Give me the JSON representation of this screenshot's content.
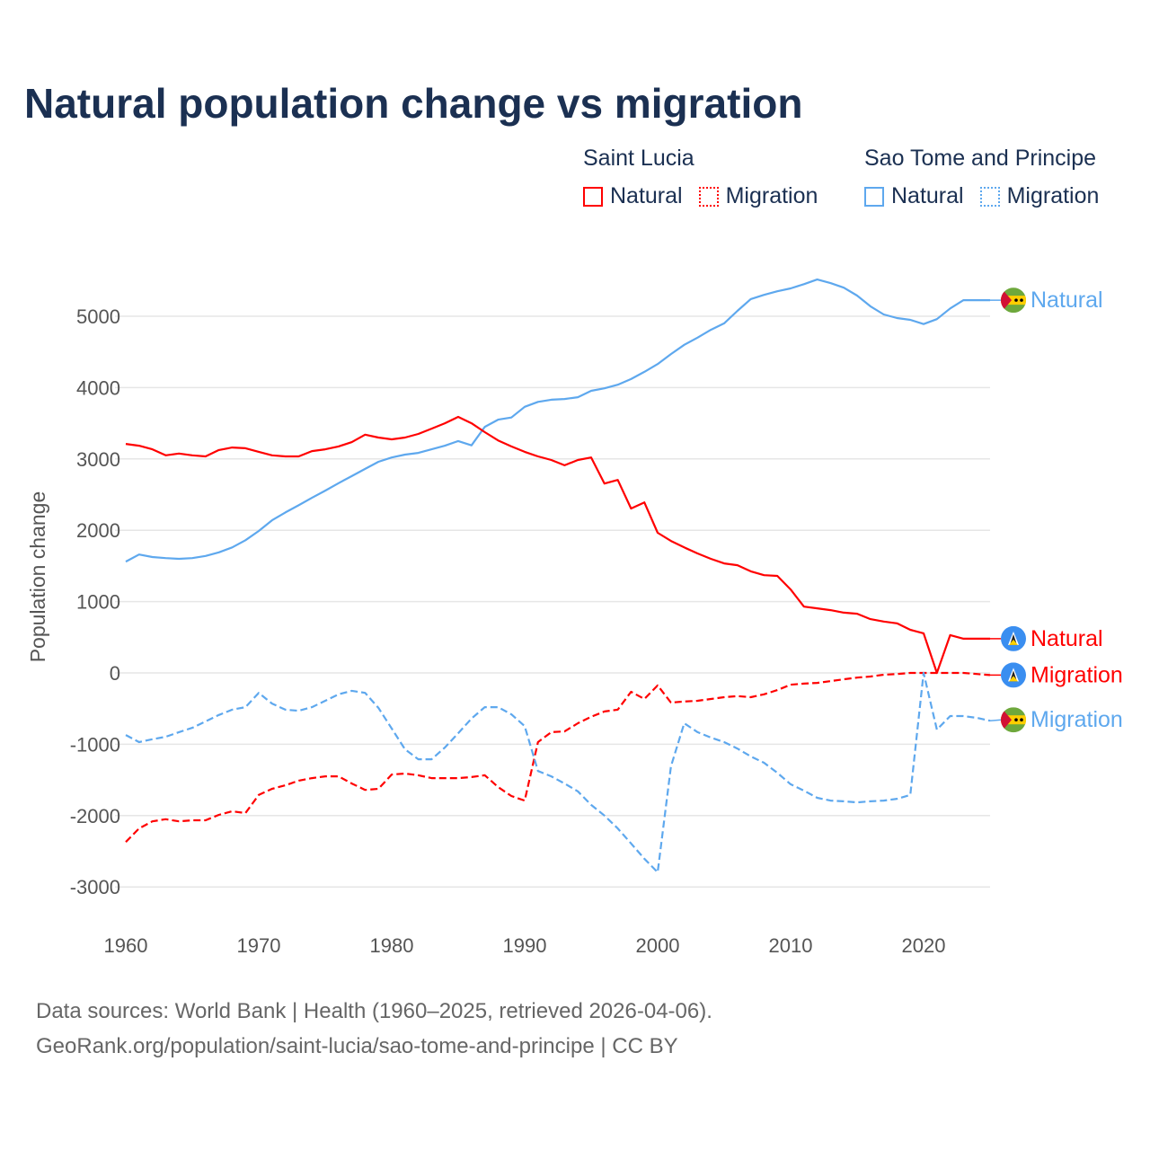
{
  "title": "Natural population change vs migration",
  "legend": {
    "groups": [
      {
        "country": "Saint Lucia",
        "color": "#ff0000",
        "items": [
          "Natural",
          "Migration"
        ]
      },
      {
        "country": "Sao Tome and Principe",
        "color": "#5ea8ee",
        "items": [
          "Natural",
          "Migration"
        ]
      }
    ]
  },
  "footer": {
    "line1": "Data sources: World Bank | Health (1960–2025, retrieved 2026-04-06).",
    "line2": "GeoRank.org/population/saint-lucia/sao-tome-and-principe | CC BY"
  },
  "chart_data": {
    "type": "line",
    "title": "Natural population change vs migration",
    "xlabel": "",
    "ylabel": "Population change",
    "xlim": [
      1960,
      2025
    ],
    "ylim": [
      -3000,
      5500
    ],
    "yticks": [
      -3000,
      -2000,
      -1000,
      0,
      1000,
      2000,
      3000,
      4000,
      5000
    ],
    "xticks": [
      1960,
      1970,
      1980,
      1990,
      2000,
      2010,
      2020
    ],
    "grid": true,
    "x_start": 1960,
    "series": [
      {
        "name": "Natural",
        "country": "Sao Tome and Principe",
        "color": "#5ea8ee",
        "dashed": false,
        "flag": "stp",
        "values": [
          1560,
          1660,
          1625,
          1610,
          1600,
          1610,
          1640,
          1690,
          1760,
          1860,
          1990,
          2140,
          2250,
          2350,
          2455,
          2555,
          2660,
          2760,
          2860,
          2960,
          3020,
          3060,
          3085,
          3135,
          3185,
          3250,
          3190,
          3450,
          3550,
          3580,
          3730,
          3800,
          3830,
          3840,
          3865,
          3955,
          3990,
          4040,
          4120,
          4220,
          4330,
          4470,
          4600,
          4700,
          4810,
          4900,
          5075,
          5240,
          5300,
          5350,
          5390,
          5450,
          5515,
          5465,
          5400,
          5290,
          5140,
          5025,
          4975,
          4950,
          4890,
          4960,
          5110,
          5225,
          5225,
          5225
        ]
      },
      {
        "name": "Natural",
        "country": "Saint Lucia",
        "color": "#ff0000",
        "dashed": false,
        "flag": "lc",
        "values": [
          3210,
          3185,
          3135,
          3050,
          3075,
          3050,
          3035,
          3125,
          3160,
          3150,
          3100,
          3050,
          3035,
          3035,
          3110,
          3135,
          3175,
          3235,
          3340,
          3300,
          3275,
          3300,
          3350,
          3425,
          3500,
          3590,
          3500,
          3375,
          3260,
          3175,
          3100,
          3035,
          2985,
          2910,
          2985,
          3020,
          2655,
          2705,
          2305,
          2390,
          1965,
          1850,
          1760,
          1675,
          1600,
          1535,
          1510,
          1425,
          1370,
          1360,
          1170,
          930,
          905,
          880,
          845,
          830,
          755,
          720,
          695,
          605,
          555,
          0,
          530,
          480,
          480,
          480
        ]
      },
      {
        "name": "Migration",
        "country": "Saint Lucia",
        "color": "#ff0000",
        "dashed": true,
        "flag": "lc",
        "values": [
          -2370,
          -2180,
          -2080,
          -2050,
          -2080,
          -2065,
          -2065,
          -1990,
          -1940,
          -1965,
          -1710,
          -1625,
          -1575,
          -1510,
          -1475,
          -1450,
          -1450,
          -1550,
          -1640,
          -1625,
          -1425,
          -1410,
          -1435,
          -1475,
          -1475,
          -1475,
          -1460,
          -1435,
          -1600,
          -1725,
          -1790,
          -970,
          -830,
          -820,
          -705,
          -615,
          -540,
          -515,
          -265,
          -365,
          -175,
          -415,
          -400,
          -390,
          -365,
          -340,
          -325,
          -340,
          -300,
          -240,
          -165,
          -150,
          -140,
          -115,
          -90,
          -65,
          -50,
          -25,
          -15,
          0,
          0,
          0,
          0,
          0,
          -15,
          -30
        ]
      },
      {
        "name": "Migration",
        "country": "Sao Tome and Principe",
        "color": "#5ea8ee",
        "dashed": true,
        "flag": "stp",
        "values": [
          -870,
          -970,
          -930,
          -895,
          -830,
          -770,
          -680,
          -590,
          -515,
          -480,
          -280,
          -430,
          -515,
          -530,
          -480,
          -390,
          -300,
          -250,
          -280,
          -490,
          -780,
          -1070,
          -1210,
          -1210,
          -1045,
          -845,
          -640,
          -480,
          -480,
          -580,
          -745,
          -1375,
          -1450,
          -1550,
          -1660,
          -1850,
          -2000,
          -2180,
          -2390,
          -2605,
          -2795,
          -1310,
          -705,
          -830,
          -905,
          -970,
          -1060,
          -1170,
          -1260,
          -1400,
          -1560,
          -1650,
          -1750,
          -1790,
          -1800,
          -1815,
          -1800,
          -1790,
          -1765,
          -1710,
          0,
          -795,
          -605,
          -605,
          -630,
          -670
        ]
      }
    ]
  }
}
